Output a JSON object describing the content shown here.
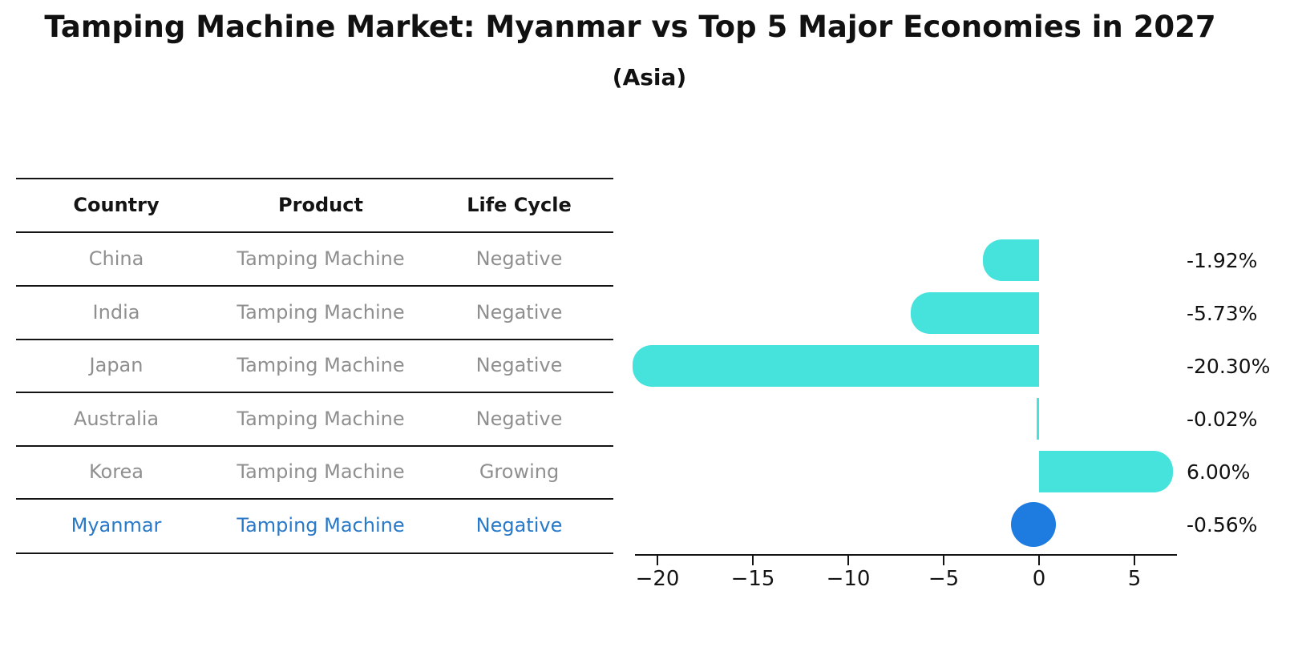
{
  "title": "Tamping Machine Market: Myanmar vs Top 5 Major Economies in 2027",
  "subtitle": "(Asia)",
  "table": {
    "headers": {
      "country": "Country",
      "product": "Product",
      "life_cycle": "Life Cycle"
    },
    "rows": [
      {
        "country": "China",
        "product": "Tamping Machine",
        "life_cycle": "Negative",
        "highlight": false
      },
      {
        "country": "India",
        "product": "Tamping Machine",
        "life_cycle": "Negative",
        "highlight": false
      },
      {
        "country": "Japan",
        "product": "Tamping Machine",
        "life_cycle": "Negative",
        "highlight": false
      },
      {
        "country": "Australia",
        "product": "Tamping Machine",
        "life_cycle": "Negative",
        "highlight": false
      },
      {
        "country": "Korea",
        "product": "Tamping Machine",
        "life_cycle": "Growing",
        "highlight": false
      },
      {
        "country": "Myanmar",
        "product": "Tamping Machine",
        "life_cycle": "Negative",
        "highlight": true
      }
    ]
  },
  "chart_data": {
    "type": "bar",
    "orientation": "horizontal",
    "categories": [
      "China",
      "India",
      "Japan",
      "Australia",
      "Korea",
      "Myanmar"
    ],
    "values": [
      -1.92,
      -5.73,
      -20.3,
      -0.02,
      6.0,
      -0.56
    ],
    "value_labels": [
      "-1.92%",
      "-5.73%",
      "-20.30%",
      "-0.02%",
      "6.00%",
      "-0.56%"
    ],
    "xticks": [
      -20,
      -15,
      -10,
      -5,
      0,
      5
    ],
    "xtick_labels": [
      "−20",
      "−15",
      "−10",
      "−5",
      "0",
      "5"
    ],
    "xlim": [
      -21.2,
      7.2
    ],
    "grid": false,
    "legend_position": "none",
    "highlight_index": 5,
    "bar_color": "#46e2dc",
    "highlight_color": "#1e7be0"
  },
  "colors": {
    "background": "#ffffff",
    "bar_cyan": "#46e2dc",
    "marker_blue": "#1e7be0",
    "highlight_text_blue": "#2879c8",
    "table_text_gray": "#8f8f8f",
    "line_black": "#141414"
  }
}
